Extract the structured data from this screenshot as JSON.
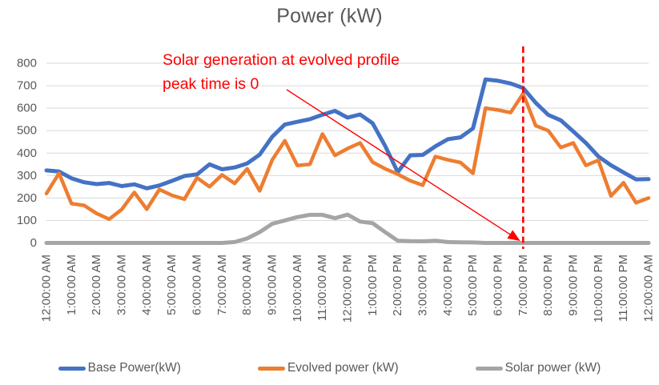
{
  "title": "Power (kW)",
  "chart_data": {
    "type": "line",
    "title": "Power (kW)",
    "grid": "horizontal",
    "ylim": [
      0,
      800
    ],
    "y_ticks": [
      0,
      100,
      200,
      300,
      400,
      500,
      600,
      700,
      800
    ],
    "x_interval_minutes": 30,
    "x_tick_labels": [
      "12:00:00 AM",
      "1:00:00 AM",
      "2:00:00 AM",
      "3:00:00 AM",
      "4:00:00 AM",
      "5:00:00 AM",
      "6:00:00 AM",
      "7:00:00 AM",
      "8:00:00 AM",
      "9:00:00 AM",
      "10:00:00 AM",
      "11:00:00 AM",
      "12:00:00 PM",
      "1:00:00 PM",
      "2:00:00 PM",
      "3:00:00 PM",
      "4:00:00 PM",
      "5:00:00 PM",
      "6:00:00 PM",
      "7:00:00 PM",
      "8:00:00 PM",
      "9:00:00 PM",
      "10:00:00 PM",
      "11:00:00 PM",
      "12:00:00 AM"
    ],
    "legend_position": "bottom",
    "series": [
      {
        "name": "Base Power(kW)",
        "color": "#4472C4",
        "values": [
          323,
          318,
          288,
          270,
          262,
          267,
          253,
          261,
          243,
          256,
          276,
          298,
          305,
          350,
          328,
          336,
          354,
          393,
          473,
          527,
          539,
          551,
          571,
          588,
          558,
          572,
          533,
          432,
          315,
          390,
          392,
          430,
          462,
          470,
          510,
          728,
          722,
          710,
          690,
          624,
          570,
          546,
          496,
          445,
          385,
          346,
          314,
          283,
          284
        ]
      },
      {
        "name": "Evolved power (kW)",
        "color": "#ED7D31",
        "values": [
          220,
          310,
          175,
          167,
          131,
          106,
          149,
          225,
          150,
          238,
          212,
          195,
          290,
          250,
          303,
          265,
          330,
          232,
          370,
          455,
          345,
          350,
          485,
          390,
          420,
          445,
          360,
          330,
          306,
          277,
          257,
          385,
          370,
          358,
          310,
          600,
          592,
          580,
          665,
          522,
          500,
          425,
          445,
          345,
          368,
          209,
          268,
          179,
          200
        ]
      },
      {
        "name": "Solar power (kW)",
        "color": "#A5A5A5",
        "values": [
          0,
          0,
          0,
          0,
          0,
          0,
          0,
          0,
          0,
          0,
          0,
          0,
          0,
          0,
          0,
          4,
          20,
          48,
          85,
          100,
          115,
          125,
          125,
          110,
          126,
          95,
          88,
          48,
          10,
          8,
          7,
          10,
          4,
          3,
          2,
          0,
          0,
          0,
          0,
          0,
          0,
          0,
          0,
          0,
          0,
          0,
          0,
          0,
          0
        ]
      }
    ],
    "annotations": {
      "color": "#FF0000",
      "text_lines": [
        "Solar generation at evolved profile",
        "peak time is 0"
      ],
      "vline_tick_label": "7:00 PM",
      "vline_hour_index": 19,
      "arrow_target": {
        "x_tick_label": "7:00 PM",
        "y_value": 0
      }
    }
  },
  "axis_text_color": "#595959",
  "gridline_color": "#D9D9D9"
}
